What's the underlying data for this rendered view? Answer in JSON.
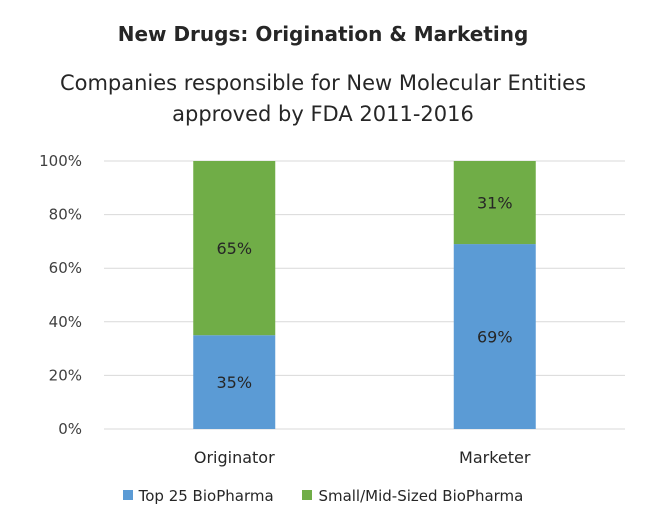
{
  "chart_data": {
    "type": "bar",
    "stacked": true,
    "title": "New Drugs: Origination & Marketing",
    "subtitle_lines": [
      "Companies responsible for New Molecular Entities",
      "approved by FDA 2011-2016"
    ],
    "categories": [
      "Originator",
      "Marketer"
    ],
    "series": [
      {
        "name": "Top 25 BioPharma",
        "values": [
          35,
          69
        ],
        "labels": [
          "35%",
          "69%"
        ],
        "color": "#5b9bd5"
      },
      {
        "name": "Small/Mid-Sized BioPharma",
        "values": [
          65,
          31
        ],
        "labels": [
          "65%",
          "31%"
        ],
        "color": "#70ad47"
      }
    ],
    "y_ticks": [
      0,
      20,
      40,
      60,
      80,
      100
    ],
    "y_tick_labels": [
      "0%",
      "20%",
      "40%",
      "60%",
      "80%",
      "100%"
    ],
    "ylim": [
      0,
      100
    ],
    "grid": true,
    "gridline_color": "#d9d9d9",
    "legend_position": "bottom"
  }
}
